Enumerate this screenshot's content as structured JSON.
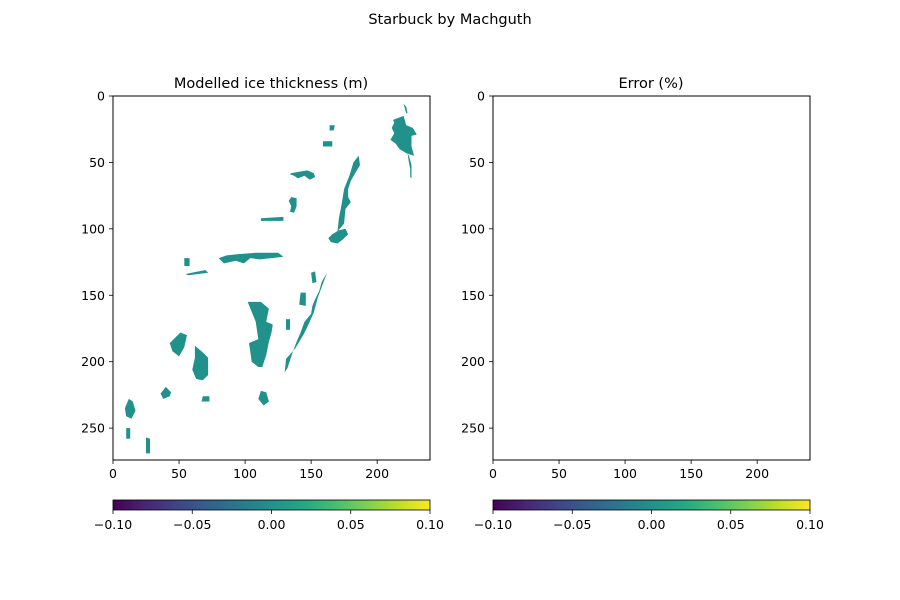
{
  "figure": {
    "suptitle": "Starbuck by Machguth"
  },
  "chart_data": [
    {
      "type": "heatmap",
      "title": "Modelled ice thickness (m)",
      "xlabel": "",
      "ylabel": "",
      "xlim": [
        0,
        240
      ],
      "ylim": [
        274,
        0
      ],
      "xticks": [
        0,
        50,
        100,
        150,
        200
      ],
      "yticks": [
        0,
        50,
        100,
        150,
        200,
        250
      ],
      "grid": false,
      "colormap": "viridis",
      "fill_color": "#21918c",
      "fill_value": 0.0,
      "colorbar": {
        "orientation": "horizontal",
        "range": [
          -0.1,
          0.1
        ],
        "ticks": [
          "−0.10",
          "−0.05",
          "0.00",
          "0.05",
          "0.10"
        ]
      },
      "regions": [
        {
          "name": "ne-glacier-head",
          "x": [
            212,
            220,
            222,
            227,
            230,
            226,
            226,
            228,
            222,
            217,
            214,
            210,
            213,
            211,
            213
          ],
          "y": [
            18,
            15,
            22,
            24,
            29,
            30,
            38,
            45,
            43,
            40,
            36,
            33,
            28,
            24,
            20
          ]
        },
        {
          "name": "ne-glacier-tongue",
          "x": [
            223,
            224,
            225,
            225,
            226,
            226,
            224
          ],
          "y": [
            43,
            50,
            55,
            61,
            62,
            52,
            45
          ]
        },
        {
          "name": "ne-glacier-strip",
          "x": [
            220,
            222,
            223,
            222
          ],
          "y": [
            6,
            8,
            13,
            13
          ]
        },
        {
          "name": "central-ridge",
          "x": [
            186,
            187,
            184,
            180,
            178,
            178,
            180,
            176,
            175,
            170,
            171,
            173,
            175,
            179,
            182
          ],
          "y": [
            45,
            52,
            57,
            64,
            70,
            76,
            80,
            85,
            96,
            102,
            92,
            82,
            70,
            60,
            50
          ]
        },
        {
          "name": "central-ridge-lobe",
          "x": [
            176,
            178,
            174,
            170,
            165,
            163,
            166,
            171
          ],
          "y": [
            100,
            104,
            108,
            111,
            110,
            107,
            104,
            101
          ]
        },
        {
          "name": "diagonal-strip",
          "x": [
            108,
            116,
            125,
            129,
            120,
            111,
            104,
            99,
            93,
            84,
            80,
            86,
            95
          ],
          "y": [
            118,
            118,
            118,
            121,
            122,
            123,
            122,
            126,
            124,
            126,
            122,
            120,
            119
          ]
        },
        {
          "name": "mid-right-cluster",
          "x": [
            135,
            147,
            152,
            153,
            149,
            145,
            140,
            137,
            134
          ],
          "y": [
            58,
            56,
            58,
            61,
            63,
            60,
            62,
            60,
            59
          ]
        },
        {
          "name": "mid-cluster-b",
          "x": [
            135,
            139,
            139,
            137,
            134,
            135,
            133
          ],
          "y": [
            76,
            77,
            83,
            88,
            87,
            83,
            79
          ]
        },
        {
          "name": "south-ridge",
          "x": [
            162,
            158,
            156,
            153,
            151,
            150,
            145,
            142,
            139,
            136,
            132,
            130,
            131,
            138,
            144,
            147,
            152,
            155
          ],
          "y": [
            133,
            140,
            147,
            153,
            158,
            164,
            170,
            178,
            185,
            193,
            205,
            208,
            198,
            190,
            180,
            174,
            163,
            152
          ]
        },
        {
          "name": "central-blob",
          "x": [
            102,
            112,
            118,
            116,
            121,
            120,
            118,
            116,
            113,
            110,
            105,
            104,
            103,
            110,
            108
          ],
          "y": [
            155,
            155,
            160,
            170,
            172,
            178,
            185,
            195,
            204,
            204,
            200,
            193,
            186,
            183,
            170
          ]
        },
        {
          "name": "lower-left-blob",
          "x": [
            62,
            68,
            72,
            72,
            68,
            63,
            60,
            62
          ],
          "y": [
            188,
            193,
            197,
            210,
            214,
            213,
            206,
            197
          ]
        },
        {
          "name": "left-blob",
          "x": [
            51,
            56,
            54,
            50,
            45,
            43,
            47
          ],
          "y": [
            178,
            180,
            189,
            196,
            192,
            186,
            182
          ]
        },
        {
          "name": "left-small-blob",
          "x": [
            40,
            44,
            43,
            38,
            36
          ],
          "y": [
            219,
            223,
            226,
            228,
            224
          ]
        },
        {
          "name": "west-edge-strip",
          "x": [
            12,
            15,
            17,
            14,
            10,
            9
          ],
          "y": [
            228,
            230,
            237,
            243,
            241,
            235
          ]
        },
        {
          "name": "sw-strip",
          "x": [
            25,
            28,
            28,
            25
          ],
          "y": [
            257,
            258,
            269,
            269
          ]
        },
        {
          "name": "lower-center",
          "x": [
            112,
            116,
            118,
            114,
            110
          ],
          "y": [
            222,
            223,
            230,
            233,
            228
          ]
        },
        {
          "name": "scatter-a",
          "x": [
            55,
            70,
            72,
            57
          ],
          "y": [
            134,
            131,
            133,
            135
          ]
        },
        {
          "name": "scatter-b",
          "x": [
            68,
            73,
            73,
            67
          ],
          "y": [
            226,
            226,
            230,
            230
          ]
        },
        {
          "name": "scatter-c",
          "x": [
            112,
            129,
            129,
            112
          ],
          "y": [
            92,
            91,
            94,
            94
          ]
        },
        {
          "name": "scatter-d",
          "x": [
            159,
            166,
            166,
            159
          ],
          "y": [
            34,
            34,
            38,
            38
          ]
        },
        {
          "name": "scatter-e",
          "x": [
            150,
            153,
            154,
            151
          ],
          "y": [
            133,
            132,
            140,
            141
          ]
        },
        {
          "name": "scatter-f",
          "x": [
            142,
            146,
            146,
            141
          ],
          "y": [
            148,
            148,
            158,
            157
          ]
        },
        {
          "name": "scatter-g",
          "x": [
            54,
            58,
            58,
            54
          ],
          "y": [
            122,
            122,
            128,
            128
          ]
        },
        {
          "name": "scatter-h",
          "x": [
            10,
            13,
            13,
            10
          ],
          "y": [
            250,
            250,
            258,
            258
          ]
        },
        {
          "name": "scatter-i",
          "x": [
            164,
            168,
            167,
            164
          ],
          "y": [
            22,
            22,
            26,
            26
          ]
        },
        {
          "name": "scatter-j",
          "x": [
            131,
            134,
            134,
            131
          ],
          "y": [
            168,
            168,
            176,
            176
          ]
        }
      ]
    },
    {
      "type": "heatmap",
      "title": "Error (%)",
      "xlabel": "",
      "ylabel": "",
      "xlim": [
        0,
        240
      ],
      "ylim": [
        274,
        0
      ],
      "xticks": [
        0,
        50,
        100,
        150,
        200
      ],
      "yticks": [
        0,
        50,
        100,
        150,
        200,
        250
      ],
      "grid": false,
      "colormap": "viridis",
      "colorbar": {
        "orientation": "horizontal",
        "range": [
          -0.1,
          0.1
        ],
        "ticks": [
          "−0.10",
          "−0.05",
          "0.00",
          "0.05",
          "0.10"
        ]
      },
      "regions": []
    }
  ]
}
